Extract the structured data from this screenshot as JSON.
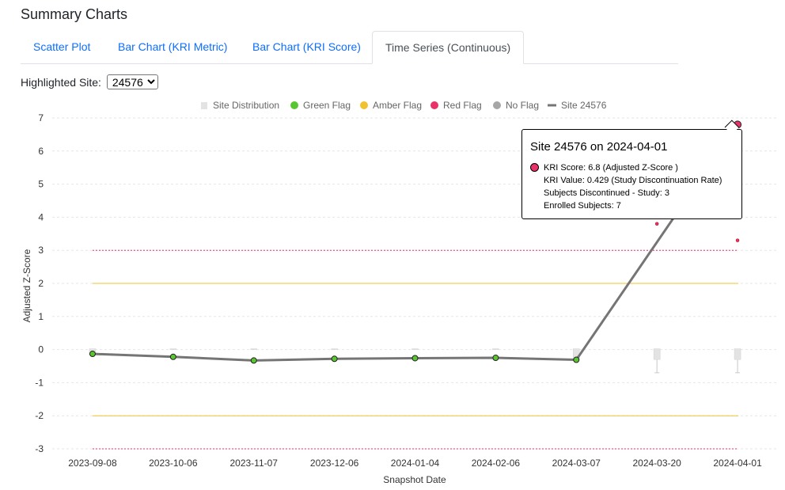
{
  "page_title": "Summary Charts",
  "tabs": [
    {
      "label": "Scatter Plot"
    },
    {
      "label": "Bar Chart (KRI Metric)"
    },
    {
      "label": "Bar Chart (KRI Score)"
    },
    {
      "label": "Time Series (Continuous)"
    }
  ],
  "site_selector": {
    "label": "Highlighted Site:",
    "value": "24576"
  },
  "colors": {
    "green": "#5ac62f",
    "amber": "#f2c12e",
    "red": "#e8336a",
    "gray": "#a6a6a6",
    "line": "#757575",
    "box": "#e3e3e3"
  },
  "chart_data": {
    "type": "line",
    "xlabel": "Snapshot Date",
    "ylabel": "Adjusted Z-Score",
    "ylim": [
      -3,
      7
    ],
    "yticks": [
      "-3",
      "-2",
      "-1",
      "0",
      "1",
      "2",
      "3",
      "4",
      "5",
      "6",
      "7"
    ],
    "categories": [
      "2023-09-08",
      "2023-10-06",
      "2023-11-07",
      "2023-12-06",
      "2024-01-04",
      "2024-02-06",
      "2024-03-07",
      "2024-03-20",
      "2024-04-01"
    ],
    "legend": [
      "Site Distribution",
      "Green Flag",
      "Amber Flag",
      "Red Flag",
      "No Flag",
      "Site 24576"
    ],
    "legend_position": "top-center",
    "thresholds": [
      {
        "value": 3,
        "flag": "red"
      },
      {
        "value": 2,
        "flag": "amber"
      },
      {
        "value": -2,
        "flag": "amber"
      },
      {
        "value": -3,
        "flag": "red"
      }
    ],
    "series": [
      {
        "name": "Site 24576",
        "values": [
          -0.13,
          -0.22,
          -0.33,
          -0.28,
          -0.26,
          -0.25,
          -0.31,
          null,
          6.8
        ],
        "flags": [
          "green",
          "green",
          "green",
          "green",
          "green",
          "green",
          "green",
          null,
          "red"
        ]
      }
    ],
    "site_distribution": [
      {
        "low": -0.15,
        "high": 0.0
      },
      {
        "low": 0.0,
        "high": 0.0
      },
      {
        "low": 0.0,
        "high": 0.0
      },
      {
        "low": 0.0,
        "high": 0.0
      },
      {
        "low": 0.0,
        "high": 0.0
      },
      {
        "low": 0.0,
        "high": 0.0
      },
      {
        "low": -0.3,
        "high": 0.0
      },
      {
        "low": -0.3,
        "high": 0.0,
        "whisker_low": -0.7
      },
      {
        "low": -0.3,
        "high": 0.0,
        "whisker_low": -0.7
      }
    ],
    "outliers": [
      {
        "category_index": 7,
        "value": 3.8,
        "flag": "red"
      },
      {
        "category_index": 8,
        "value": 3.3,
        "flag": "red"
      }
    ],
    "tooltip": {
      "title": "Site 24576 on 2024-04-01",
      "lines": [
        "KRI Score: 6.8 (Adjusted Z-Score )",
        "KRI Value: 0.429 (Study Discontinuation Rate)",
        "Subjects Discontinued - Study: 3",
        "Enrolled Subjects: 7"
      ]
    }
  }
}
